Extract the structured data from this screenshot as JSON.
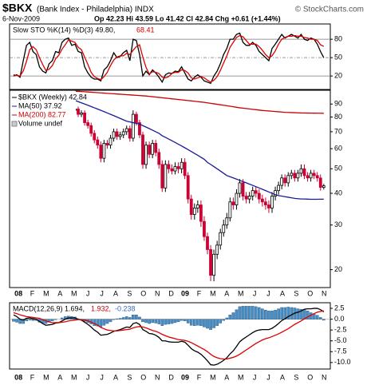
{
  "header": {
    "symbol": "$BKX",
    "name": "(Bank Index - Philadelphia) INDX",
    "credit": "© StockCharts.com",
    "date": "6-Nov-2009",
    "quote": "Op 42.23 Hi 43.59 Lo 41.42 Cl 42.84 Chg +0.61 (+1.44%)"
  },
  "chart_data": [
    {
      "type": "line",
      "title": "Slow STO %K(14) %D(3) 49.80,",
      "title_2": "68.41",
      "ylim": [
        -2,
        105
      ],
      "yticks": [
        20,
        50,
        80
      ],
      "series": [
        {
          "color": "#000000",
          "values": [
            20,
            22,
            18,
            45,
            70,
            75,
            60,
            55,
            35,
            28,
            25,
            40,
            45,
            60,
            58,
            75,
            80,
            82,
            70,
            72,
            60,
            58,
            35,
            25,
            18,
            15,
            15,
            12,
            30,
            35,
            45,
            58,
            50,
            52,
            58,
            62,
            45,
            80,
            78,
            55,
            20,
            28,
            22,
            30,
            25,
            18,
            10,
            22,
            25,
            24,
            28,
            27,
            35,
            25,
            15,
            12,
            18,
            22,
            18,
            12,
            10,
            8,
            20,
            28,
            40,
            55,
            65,
            80,
            80,
            88,
            90,
            75,
            70,
            70,
            75,
            70,
            60,
            55,
            50,
            45,
            65,
            72,
            80,
            88,
            82,
            85,
            88,
            85,
            82,
            88,
            80,
            78,
            82,
            80,
            72,
            60,
            49.8
          ]
        },
        {
          "color": "#dd0000",
          "values": [
            22,
            21,
            20,
            28,
            44,
            63,
            68,
            63,
            50,
            39,
            29,
            31,
            37,
            48,
            54,
            64,
            71,
            79,
            77,
            75,
            67,
            63,
            51,
            39,
            26,
            19,
            16,
            14,
            19,
            26,
            37,
            46,
            51,
            53,
            53,
            57,
            55,
            62,
            68,
            71,
            51,
            34,
            23,
            27,
            26,
            24,
            18,
            17,
            19,
            24,
            26,
            26,
            30,
            29,
            25,
            17,
            15,
            17,
            19,
            17,
            13,
            10,
            13,
            19,
            29,
            41,
            53,
            67,
            75,
            83,
            86,
            84,
            78,
            72,
            72,
            72,
            68,
            62,
            55,
            50,
            53,
            61,
            72,
            80,
            83,
            85,
            85,
            86,
            85,
            85,
            83,
            82,
            80,
            80,
            78,
            71,
            68.41
          ]
        }
      ]
    },
    {
      "type": "candlestick",
      "log_scale": true,
      "ylim": [
        17,
        102
      ],
      "yticks": [
        90,
        80,
        70,
        60,
        50,
        40,
        30,
        20
      ],
      "name": "$BKX (Weekly) 42.84",
      "legend_note": "Volume undef",
      "up_color": "#000000",
      "down_color": "#cc0033",
      "x_labels": [
        "08",
        "F",
        "M",
        "A",
        "M",
        "J",
        "J",
        "A",
        "S",
        "O",
        "N",
        "D",
        "09",
        "F",
        "M",
        "A",
        "M",
        "J",
        "J",
        "A",
        "S",
        "O",
        "N"
      ],
      "open": [
        90,
        88,
        84,
        80,
        89,
        92,
        86,
        85,
        86,
        80,
        76,
        74,
        80,
        78,
        82,
        79,
        86,
        88,
        89,
        85,
        86,
        82,
        83,
        76,
        74,
        69,
        65,
        62,
        55,
        63,
        62,
        66,
        70,
        67,
        68,
        70,
        72,
        66,
        82,
        76,
        68,
        52,
        62,
        57,
        63,
        58,
        52,
        42,
        52,
        50,
        49,
        51,
        50,
        53,
        47,
        38,
        33,
        35,
        36,
        31,
        27,
        24,
        19,
        23,
        25,
        28,
        30,
        32,
        37,
        36,
        40,
        44,
        39,
        38,
        39,
        41,
        40,
        38,
        37,
        36,
        35,
        39,
        41,
        43,
        46,
        44,
        47,
        48,
        46,
        48,
        50,
        47,
        46,
        48,
        47,
        46,
        42.23
      ],
      "high": [
        92,
        90,
        86,
        91,
        94,
        94,
        88,
        88,
        88,
        82,
        78,
        82,
        82,
        84,
        84,
        88,
        90,
        91,
        91,
        88,
        88,
        85,
        85,
        78,
        76,
        71,
        67,
        64,
        65,
        65,
        68,
        72,
        72,
        70,
        72,
        74,
        74,
        85,
        84,
        78,
        70,
        64,
        64,
        65,
        65,
        60,
        54,
        54,
        54,
        52,
        53,
        53,
        55,
        55,
        48.5,
        39.5,
        36.5,
        37.5,
        37.5,
        32.5,
        28,
        25,
        24,
        26,
        29,
        31.5,
        33.5,
        38.5,
        38.5,
        41.5,
        45.5,
        45.5,
        40.5,
        40.5,
        42.5,
        42.5,
        41.5,
        39.5,
        38.5,
        37.5,
        40.5,
        42.5,
        44.5,
        47.5,
        47.5,
        48.5,
        49.5,
        49.5,
        49.5,
        52,
        52,
        48.5,
        49.5,
        49.5,
        48.5,
        47.5,
        43.59
      ],
      "low": [
        86,
        82,
        78,
        78,
        87,
        84,
        83,
        83,
        78,
        74,
        72,
        72,
        76,
        76,
        77,
        77,
        84,
        86,
        83,
        83,
        80,
        80,
        74,
        72,
        67,
        63,
        60,
        53,
        53,
        60,
        60,
        64,
        65,
        65,
        66,
        68,
        64,
        64,
        74,
        66,
        50,
        50,
        55,
        55,
        56,
        50,
        40.5,
        40.5,
        48,
        47.5,
        47.5,
        48,
        48,
        45.5,
        36.5,
        31.5,
        31.5,
        33.5,
        29.5,
        26,
        23,
        18,
        18,
        22,
        24,
        27,
        29,
        31,
        34.5,
        34.5,
        38.5,
        37.5,
        36.5,
        36.5,
        37.5,
        38.5,
        36.5,
        35.5,
        34.5,
        33.5,
        33.5,
        37.5,
        39.5,
        41.5,
        42.5,
        42.5,
        45.5,
        44.5,
        44.5,
        46.5,
        45.5,
        44.5,
        44.5,
        45.5,
        44.5,
        41,
        41.42
      ],
      "close": [
        88,
        84,
        80,
        89,
        92,
        86,
        85,
        86,
        80,
        76,
        74,
        80,
        78,
        82,
        79,
        86,
        88,
        89,
        85,
        86,
        82,
        83,
        76,
        74,
        69,
        65,
        62,
        55,
        63,
        62,
        66,
        70,
        67,
        68,
        70,
        72,
        66,
        82,
        76,
        68,
        52,
        62,
        57,
        63,
        58,
        52,
        42,
        52,
        50,
        49,
        51,
        50,
        53,
        47,
        38,
        33,
        35,
        36,
        31,
        27,
        24,
        19,
        23,
        25,
        28,
        30,
        32,
        37,
        36,
        40,
        44,
        39,
        38,
        39,
        41,
        40,
        38,
        37,
        36,
        35,
        39,
        41,
        43,
        46,
        44,
        47,
        48,
        46,
        48,
        50,
        47,
        46,
        48,
        47,
        46,
        42.23,
        42.84
      ],
      "series": [
        {
          "name": "MA(50) 37.92",
          "color": "#1a1a99",
          "values": [
            null,
            null,
            null,
            null,
            null,
            null,
            null,
            null,
            null,
            null,
            null,
            null,
            null,
            null,
            null,
            null,
            null,
            null,
            null,
            93,
            92,
            91,
            90,
            89,
            88,
            87,
            86,
            85,
            84,
            83,
            82,
            81,
            80,
            79,
            78,
            77,
            76.5,
            76,
            75.5,
            75,
            74,
            73,
            72,
            71,
            70,
            69,
            67.5,
            66.5,
            65.5,
            64.5,
            63.5,
            62.5,
            61.5,
            60.5,
            59.5,
            58.5,
            57.5,
            56.5,
            55.5,
            54.5,
            53,
            52,
            51,
            50,
            49,
            48,
            47,
            46.5,
            46,
            45.5,
            45,
            44.5,
            44,
            43.5,
            43,
            42.5,
            42,
            41.5,
            41,
            40.5,
            40,
            39.5,
            39.2,
            39,
            38.8,
            38.6,
            38.4,
            38.2,
            38.1,
            38,
            38,
            37.95,
            37.9,
            37.9,
            37.9,
            37.92,
            37.92
          ]
        },
        {
          "name": "MA(200) 82.77",
          "color": "#cc0000",
          "values": [
            null,
            null,
            null,
            null,
            null,
            null,
            null,
            null,
            null,
            null,
            null,
            null,
            null,
            null,
            null,
            null,
            null,
            null,
            null,
            101,
            101,
            100.8,
            100.6,
            100.4,
            100.2,
            100,
            99.8,
            99.6,
            99.4,
            99.2,
            99,
            98.8,
            98.6,
            98.4,
            98.2,
            98,
            97.8,
            97.6,
            97.4,
            97.2,
            97,
            96.8,
            96.5,
            96.2,
            95.9,
            95.6,
            95.3,
            95,
            94.7,
            94.4,
            94.1,
            93.8,
            93.5,
            93.2,
            92.9,
            92.6,
            92.3,
            92,
            91.7,
            91.4,
            91,
            90.6,
            90.2,
            89.8,
            89.4,
            89,
            88.6,
            88.2,
            87.8,
            87.4,
            87,
            86.7,
            86.4,
            86.1,
            85.8,
            85.5,
            85.2,
            84.9,
            84.7,
            84.5,
            84.3,
            84.1,
            83.9,
            83.7,
            83.5,
            83.4,
            83.3,
            83.2,
            83.1,
            83,
            82.95,
            82.9,
            82.87,
            82.84,
            82.81,
            82.79,
            82.77
          ]
        }
      ]
    },
    {
      "type": "macd",
      "title": "MACD(12,26,9) 1.694,",
      "title_2": "1.932,",
      "title_3": "-0.238",
      "ylim": [
        -11.5,
        3.8
      ],
      "yticks": [
        2.5,
        {
          "value": 0,
          "label": "0.0"
        },
        -2.5,
        {
          "value": -5,
          "label": "-5.0"
        },
        -7.5,
        {
          "value": -10,
          "label": "-10.0"
        }
      ],
      "series": [
        {
          "type": "bar",
          "color": "#4a90c8",
          "values": [
            -0.5,
            -0.7,
            -1.0,
            -1.0,
            -0.4,
            -0.2,
            -0.3,
            -0.3,
            -0.7,
            -0.9,
            -1.0,
            -0.7,
            -0.4,
            -0.1,
            0.0,
            0.3,
            0.6,
            0.7,
            0.6,
            0.5,
            0.1,
            -0.1,
            -0.5,
            -0.8,
            -1.1,
            -1.5,
            -1.6,
            -1.8,
            -1.4,
            -1.0,
            -0.6,
            -0.1,
            0.1,
            0.2,
            0.4,
            0.6,
            0.4,
            1.0,
            1.0,
            0.5,
            -0.6,
            -0.8,
            -1.0,
            -0.8,
            -0.9,
            -1.1,
            -1.5,
            -1.2,
            -1.1,
            -1.0,
            -0.8,
            -0.6,
            -0.3,
            -0.4,
            -0.9,
            -1.4,
            -1.5,
            -1.4,
            -1.5,
            -1.8,
            -2.1,
            -2.4,
            -2.0,
            -1.5,
            -0.9,
            -0.3,
            0.3,
            1.0,
            1.5,
            2.2,
            2.9,
            3.0,
            3.0,
            3.0,
            3.0,
            2.9,
            2.7,
            2.4,
            2.1,
            1.9,
            1.9,
            2.1,
            2.4,
            2.7,
            2.7,
            2.8,
            2.7,
            2.6,
            2.4,
            2.3,
            2.2,
            1.9,
            1.5,
            1.2,
            0.9,
            0.4,
            -0.238
          ]
        },
        {
          "type": "line",
          "color": "#000000",
          "values": [
            1.0,
            0.6,
            0.0,
            -0.2,
            0.2,
            0.3,
            0.1,
            0.0,
            -0.5,
            -1.0,
            -1.4,
            -1.3,
            -1.2,
            -0.9,
            -0.8,
            -0.4,
            0.0,
            0.3,
            0.3,
            0.3,
            0.0,
            -0.2,
            -0.7,
            -1.2,
            -1.8,
            -2.5,
            -3.0,
            -3.7,
            -3.6,
            -3.5,
            -3.2,
            -2.8,
            -2.6,
            -2.4,
            -2.1,
            -1.8,
            -1.9,
            -1.0,
            -0.8,
            -1.2,
            -2.4,
            -2.8,
            -3.3,
            -3.4,
            -3.7,
            -4.2,
            -5.0,
            -5.0,
            -5.2,
            -5.3,
            -5.3,
            -5.3,
            -5.1,
            -5.3,
            -6.0,
            -6.8,
            -7.3,
            -7.6,
            -8.1,
            -8.8,
            -9.6,
            -10.5,
            -10.6,
            -10.4,
            -10.0,
            -9.5,
            -8.9,
            -8.0,
            -7.3,
            -6.3,
            -5.2,
            -4.6,
            -4.1,
            -3.6,
            -3.1,
            -2.7,
            -2.5,
            -2.4,
            -2.4,
            -2.4,
            -2.1,
            -1.6,
            -1.0,
            -0.3,
            0.1,
            0.6,
            1.0,
            1.4,
            1.6,
            1.9,
            2.3,
            2.4,
            2.4,
            2.5,
            2.5,
            2.2,
            1.694
          ]
        },
        {
          "type": "line",
          "color": "#dd0000",
          "values": [
            1.5,
            1.3,
            1.0,
            0.8,
            0.6,
            0.5,
            0.4,
            0.3,
            0.2,
            -0.1,
            -0.4,
            -0.6,
            -0.8,
            -0.8,
            -0.8,
            -0.7,
            -0.6,
            -0.4,
            -0.3,
            -0.2,
            -0.1,
            -0.1,
            -0.2,
            -0.4,
            -0.7,
            -1.0,
            -1.4,
            -1.9,
            -2.2,
            -2.5,
            -2.6,
            -2.7,
            -2.7,
            -2.6,
            -2.5,
            -2.4,
            -2.3,
            -2.0,
            -1.8,
            -1.7,
            -1.8,
            -2.0,
            -2.3,
            -2.6,
            -2.8,
            -3.1,
            -3.5,
            -3.8,
            -4.1,
            -4.3,
            -4.5,
            -4.7,
            -4.8,
            -4.9,
            -5.1,
            -5.4,
            -5.8,
            -6.2,
            -6.6,
            -7.0,
            -7.5,
            -8.1,
            -8.6,
            -8.9,
            -9.1,
            -9.2,
            -9.2,
            -9.0,
            -8.8,
            -8.5,
            -8.1,
            -7.6,
            -7.1,
            -6.6,
            -6.1,
            -5.6,
            -5.2,
            -4.8,
            -4.5,
            -4.3,
            -4.0,
            -3.7,
            -3.4,
            -3.0,
            -2.6,
            -2.2,
            -1.7,
            -1.2,
            -0.8,
            -0.4,
            0.1,
            0.5,
            0.9,
            1.3,
            1.6,
            1.8,
            1.932
          ]
        }
      ]
    }
  ]
}
